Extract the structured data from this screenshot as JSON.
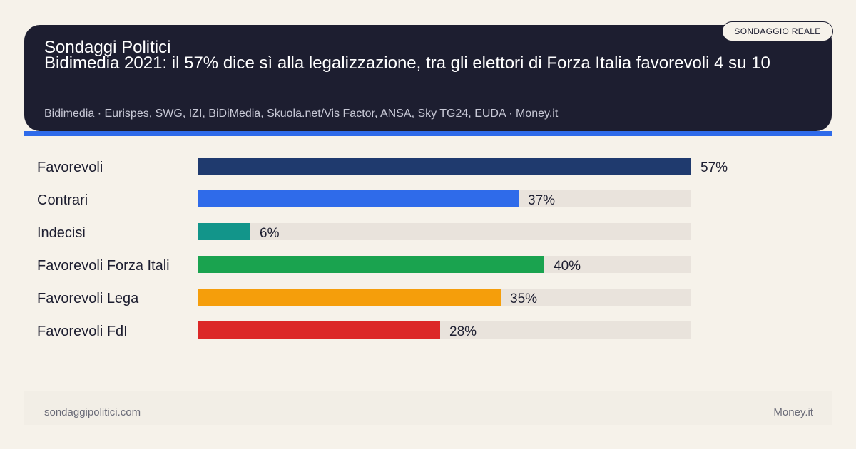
{
  "header": {
    "kicker": "Sondaggi Politici",
    "title": "Bidimedia 2021: il 57% dice sì alla legalizzazione, tra gli elettori di Forza Italia favorevoli 4 su 10",
    "sources": "Bidimedia · Eurispes, SWG, IZI, BiDiMedia, Skuola.net/Vis Factor, ANSA, Sky TG24, EUDA · Money.it",
    "badge": "SONDAGGIO REALE"
  },
  "chart_data": {
    "type": "bar",
    "orientation": "horizontal",
    "title": "",
    "xlabel": "",
    "ylabel": "",
    "xlim": [
      0,
      57
    ],
    "grid": false,
    "categories": [
      "Favorevoli",
      "Contrari",
      "Indecisi",
      "Favorevoli Forza Itali",
      "Favorevoli Lega",
      "Favorevoli FdI"
    ],
    "values": [
      57,
      37,
      6,
      40,
      35,
      28
    ],
    "value_labels": [
      "57%",
      "37%",
      "6%",
      "40%",
      "35%",
      "28%"
    ],
    "colors": [
      "#1f3a6e",
      "#2f6bea",
      "#12958a",
      "#1aa34f",
      "#f59e0b",
      "#dc2828"
    ],
    "track_color": "#e9e3dc"
  },
  "footer": {
    "left": "sondaggipolitici.com",
    "right": "Money.it"
  }
}
